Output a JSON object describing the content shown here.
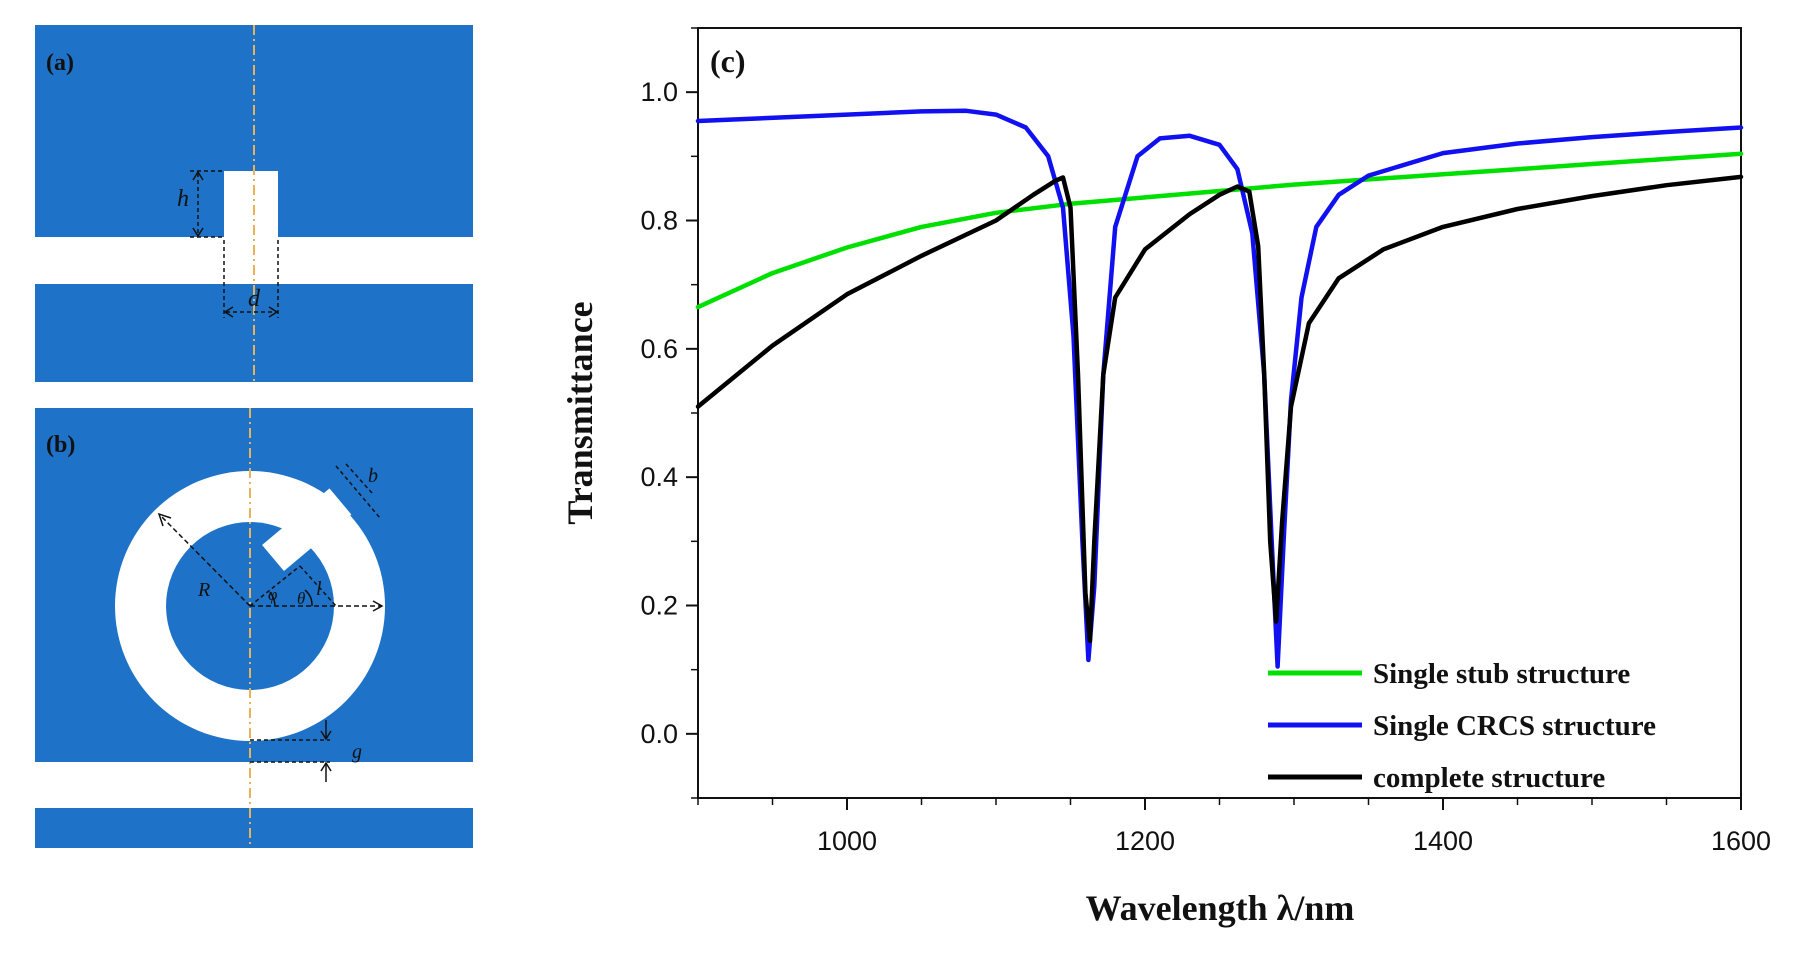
{
  "figure": {
    "panel_a_label": "(a)",
    "panel_b_label": "(b)",
    "panel_a_dims": {
      "h": "h",
      "d": "d"
    },
    "panel_b_dims": {
      "R": "R",
      "b": "b",
      "phi": "φ",
      "theta": "θ",
      "l": "l",
      "g": "g"
    },
    "colors": {
      "metal": "#1E73C8",
      "gap": "#FFFFFF",
      "axis_line": "#E8B25A"
    }
  },
  "chart_data": {
    "type": "line",
    "panel_label": "(c)",
    "xlabel": "Wavelength λ/nm",
    "ylabel": "Transmittance",
    "xlim": [
      900,
      1600
    ],
    "ylim": [
      -0.1,
      1.1
    ],
    "xticks": [
      1000,
      1200,
      1400,
      1600
    ],
    "xtick_labels": [
      "1000",
      "1200",
      "1400",
      "1600"
    ],
    "yticks": [
      0.0,
      0.2,
      0.4,
      0.6,
      0.8,
      1.0
    ],
    "ytick_labels": [
      "0.0",
      "0.2",
      "0.4",
      "0.6",
      "0.8",
      "1.0"
    ],
    "legend_position": "bottom-right",
    "series": [
      {
        "name": "Single stub structure",
        "color": "#00E000",
        "x": [
          900,
          950,
          1000,
          1050,
          1100,
          1150,
          1200,
          1250,
          1300,
          1350,
          1400,
          1450,
          1500,
          1550,
          1600
        ],
        "y": [
          0.665,
          0.718,
          0.758,
          0.79,
          0.812,
          0.826,
          0.836,
          0.846,
          0.856,
          0.864,
          0.872,
          0.88,
          0.888,
          0.896,
          0.904
        ]
      },
      {
        "name": "Single CRCS structure",
        "color": "#1010F0",
        "x": [
          900,
          1000,
          1050,
          1080,
          1100,
          1120,
          1135,
          1145,
          1152,
          1158,
          1162,
          1166,
          1172,
          1180,
          1195,
          1210,
          1230,
          1250,
          1262,
          1272,
          1280,
          1285,
          1289,
          1293,
          1298,
          1305,
          1315,
          1330,
          1350,
          1400,
          1450,
          1500,
          1550,
          1600
        ],
        "y": [
          0.955,
          0.965,
          0.97,
          0.971,
          0.965,
          0.945,
          0.9,
          0.82,
          0.62,
          0.3,
          0.115,
          0.23,
          0.56,
          0.79,
          0.9,
          0.928,
          0.932,
          0.918,
          0.88,
          0.78,
          0.56,
          0.3,
          0.105,
          0.3,
          0.52,
          0.68,
          0.79,
          0.84,
          0.87,
          0.905,
          0.92,
          0.93,
          0.938,
          0.945
        ]
      },
      {
        "name": "complete structure",
        "color": "#000000",
        "x": [
          900,
          950,
          1000,
          1050,
          1100,
          1125,
          1140,
          1145,
          1150,
          1155,
          1160,
          1163,
          1166,
          1172,
          1180,
          1200,
          1230,
          1250,
          1262,
          1270,
          1276,
          1280,
          1284,
          1288,
          1292,
          1298,
          1310,
          1330,
          1360,
          1400,
          1450,
          1500,
          1550,
          1600
        ],
        "y": [
          0.51,
          0.605,
          0.685,
          0.745,
          0.8,
          0.84,
          0.862,
          0.867,
          0.82,
          0.56,
          0.22,
          0.145,
          0.3,
          0.56,
          0.68,
          0.755,
          0.81,
          0.84,
          0.853,
          0.845,
          0.76,
          0.56,
          0.3,
          0.175,
          0.33,
          0.51,
          0.64,
          0.71,
          0.755,
          0.79,
          0.818,
          0.838,
          0.855,
          0.868
        ]
      }
    ]
  }
}
